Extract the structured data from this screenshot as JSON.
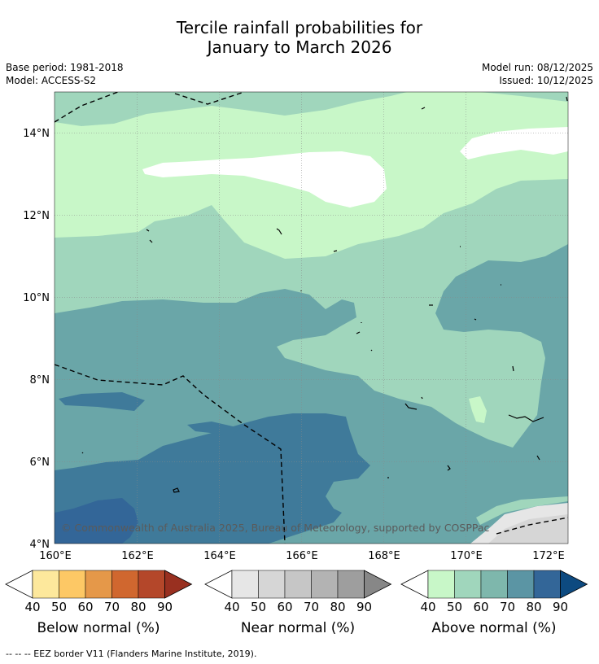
{
  "title_line1": "Tercile rainfall probabilities for",
  "title_line2": "January to March 2026",
  "base_period": "Base period: 1981-2018",
  "model": "Model: ACCESS-S2",
  "model_run": "Model run: 08/12/2025",
  "issued": "Issued: 10/12/2025",
  "copyright": "© Commonwealth of Australia 2025, Bureau of Meteorology, supported by COSPPac",
  "footer": "--  --  -- EEZ border V11 (Flanders Marine Institute, 2019).",
  "lat_labels": [
    "14°N",
    "12°N",
    "10°N",
    "8°N",
    "6°N",
    "4°N"
  ],
  "lon_labels": [
    "160°E",
    "162°E",
    "164°E",
    "166°E",
    "168°E",
    "170°E",
    "172°E"
  ],
  "colorbars": [
    {
      "name": "Below normal (%)",
      "ticks": [
        "40",
        "50",
        "60",
        "70",
        "80",
        "90"
      ],
      "colors": [
        "#ffffff",
        "#fde89c",
        "#fdc865",
        "#e59849",
        "#d0672f",
        "#b4472a",
        "#993020"
      ]
    },
    {
      "name": "Near normal (%)",
      "ticks": [
        "40",
        "50",
        "60",
        "70",
        "80",
        "90"
      ],
      "colors": [
        "#ffffff",
        "#e6e6e6",
        "#d6d6d6",
        "#c6c6c6",
        "#b3b3b3",
        "#9e9e9e",
        "#878787"
      ]
    },
    {
      "name": "Above normal (%)",
      "ticks": [
        "40",
        "50",
        "60",
        "70",
        "80",
        "90"
      ],
      "colors": [
        "#ffffff",
        "#c8f7c8",
        "#a0d6bc",
        "#7eb7ac",
        "#5b95a4",
        "#336698",
        "#0d4a80"
      ]
    }
  ],
  "colors": {
    "above_40": "#c8f7c8",
    "above_50": "#a0d6bc",
    "above_60": "#7eb7ac",
    "above_70": "#6aa6a8",
    "above_80": "#3f7a9a",
    "above_90": "#336698",
    "near_50": "#e6e6e6",
    "near_60": "#d6d6d6"
  }
}
